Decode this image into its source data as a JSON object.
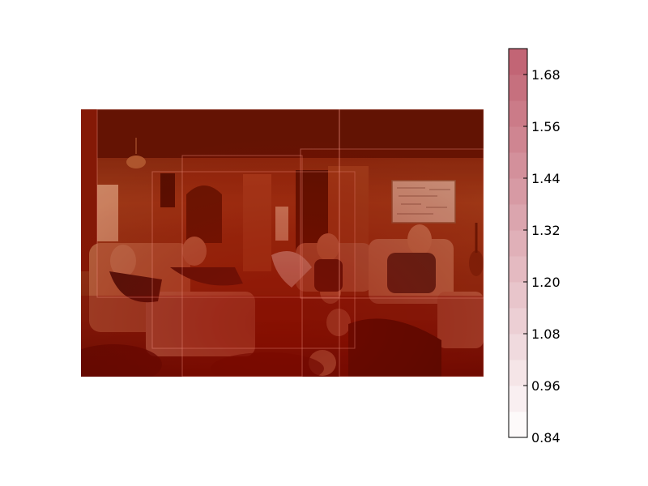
{
  "chart_data": {
    "type": "heatmap",
    "title": "",
    "xlabel": "",
    "ylabel": "",
    "background_image": "people-in-living-room-photo",
    "overlay_boxes": [
      {
        "weight": 1.4
      },
      {
        "weight": 1.22
      },
      {
        "weight": 1.3
      },
      {
        "weight": 1.18
      },
      {
        "weight": 1.12
      }
    ],
    "colorbar": {
      "vmin": 0.84,
      "vmax": 1.74,
      "ticks": [
        0.84,
        0.96,
        1.08,
        1.2,
        1.32,
        1.44,
        1.56,
        1.68
      ],
      "tick_labels": [
        "0.84",
        "0.96",
        "1.08",
        "1.20",
        "1.32",
        "1.44",
        "1.56",
        "1.68"
      ],
      "levels": 15,
      "colormap": "white-to-red",
      "color_low": "#ffffff",
      "color_high": "#c06070"
    }
  }
}
